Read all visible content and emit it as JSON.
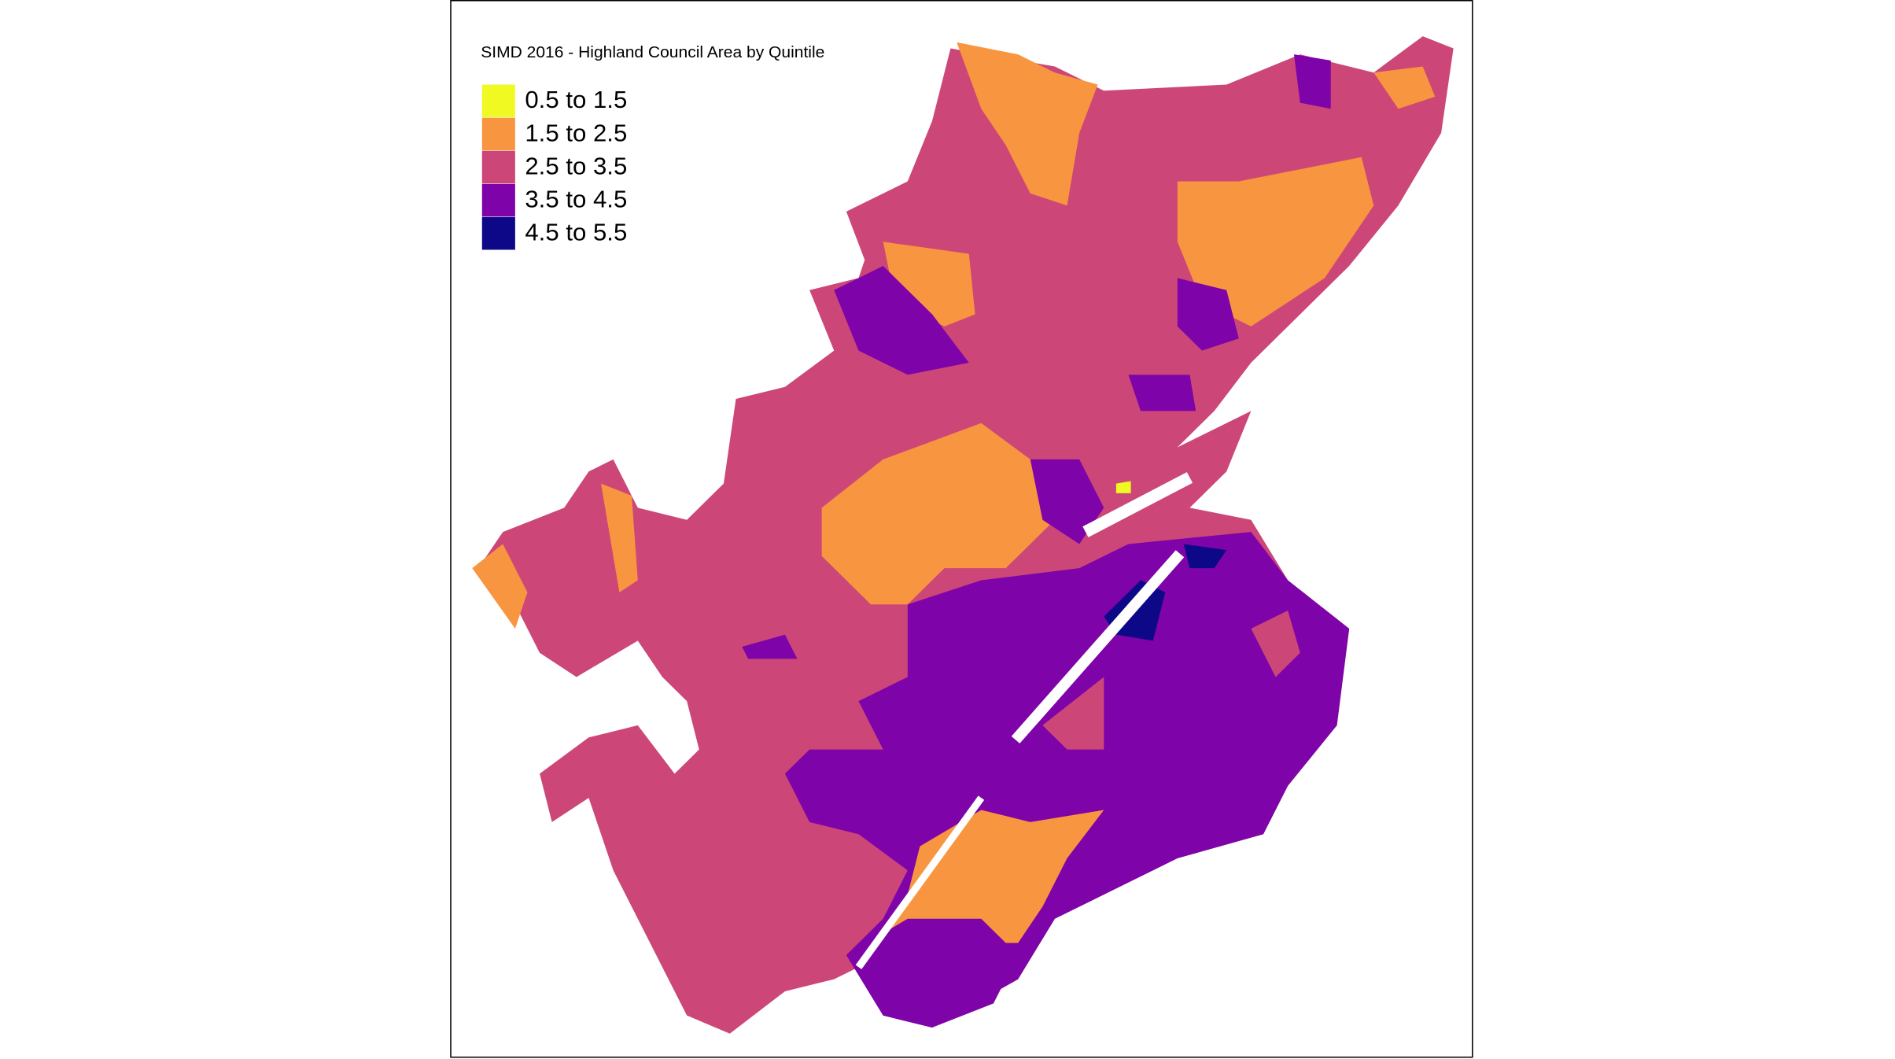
{
  "map": {
    "title": "SIMD 2016 - Highland Council Area by Quintile",
    "legend": [
      {
        "label": "0.5 to 1.5",
        "color": "#f0f921"
      },
      {
        "label": "1.5 to 2.5",
        "color": "#f89540"
      },
      {
        "label": "2.5 to 3.5",
        "color": "#cc4778"
      },
      {
        "label": "3.5 to 4.5",
        "color": "#7e03a8"
      },
      {
        "label": "4.5 to 5.5",
        "color": "#0d0887"
      }
    ]
  }
}
